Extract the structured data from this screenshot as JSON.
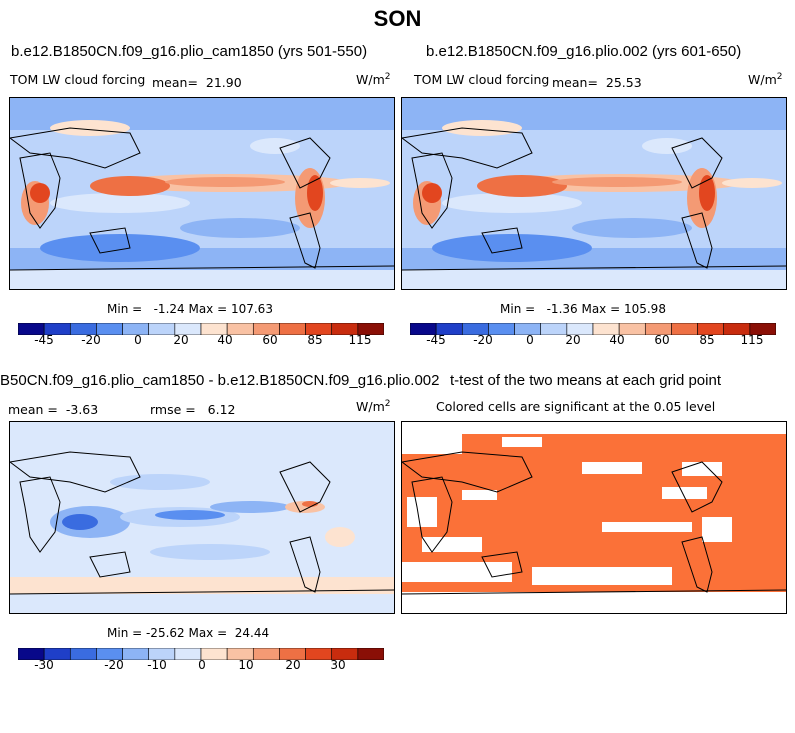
{
  "page_title": "SON",
  "panels": [
    {
      "case_title": "b.e12.B1850CN.f09_g16.plio_cam1850 (yrs 501-550)",
      "variable": "TOM LW cloud forcing",
      "mean_label": "mean=",
      "mean_value": "21.90",
      "units": "W/m",
      "units_exp": "2",
      "minmax_text": "Min =   -1.24 Max = 107.63",
      "colorbar_ticks": [
        "-45",
        "-20",
        "0",
        "20",
        "40",
        "60",
        "85",
        "115"
      ]
    },
    {
      "case_title": "b.e12.B1850CN.f09_g16.plio.002 (yrs 601-650)",
      "variable": "TOM LW cloud forcing",
      "mean_label": "mean=",
      "mean_value": "25.53",
      "units": "W/m",
      "units_exp": "2",
      "minmax_text": "Min =   -1.36 Max = 105.98",
      "colorbar_ticks": [
        "-45",
        "-20",
        "0",
        "20",
        "40",
        "60",
        "85",
        "115"
      ]
    },
    {
      "case_title": "B50CN.f09_g16.plio_cam1850 - b.e12.B1850CN.f09_g16.plio.002",
      "mean_label": "mean =",
      "mean_value": "-3.63",
      "rmse_label": "rmse =",
      "rmse_value": "6.12",
      "units": "W/m",
      "units_exp": "2",
      "minmax_text": "Min = -25.62 Max =  24.44",
      "colorbar_ticks": [
        "-30",
        "-20",
        "-10",
        "0",
        "10",
        "20",
        "30"
      ]
    },
    {
      "case_title": "t-test of the two means at each grid point",
      "subtitle": "Colored cells are significant at the 0.05 level"
    }
  ],
  "colors": {
    "abs_scale": [
      "#08088a",
      "#1f3fc8",
      "#3a6ce0",
      "#5a8ff0",
      "#8db4f5",
      "#bcd4fa",
      "#dbe8fc",
      "#fde3d0",
      "#f9c2a4",
      "#f49a74",
      "#ee7044",
      "#e2461f",
      "#c82c0e",
      "#8a0f06"
    ],
    "diff_scale": [
      "#08088a",
      "#1f3fc8",
      "#3a6ce0",
      "#5a8ff0",
      "#8db4f5",
      "#bcd4fa",
      "#dbe8fc",
      "#fde3d0",
      "#f9c2a4",
      "#f49a74",
      "#ee7044",
      "#e2461f",
      "#c82c0e",
      "#8a0f06"
    ],
    "significant": "#fb7138",
    "background_blue": "#bcd4fa"
  },
  "chart_data": [
    {
      "type": "heatmap",
      "title": "b.e12.B1850CN.f09_g16.plio_cam1850 (yrs 501-550)",
      "variable": "TOM LW cloud forcing",
      "units": "W/m2",
      "mean": 21.9,
      "min": -1.24,
      "max": 107.63,
      "colorbar_ticks": [
        -45,
        -20,
        0,
        20,
        40,
        60,
        85,
        115
      ]
    },
    {
      "type": "heatmap",
      "title": "b.e12.B1850CN.f09_g16.plio.002 (yrs 601-650)",
      "variable": "TOM LW cloud forcing",
      "units": "W/m2",
      "mean": 25.53,
      "min": -1.36,
      "max": 105.98,
      "colorbar_ticks": [
        -45,
        -20,
        0,
        20,
        40,
        60,
        85,
        115
      ]
    },
    {
      "type": "heatmap",
      "title": "B50CN.f09_g16.plio_cam1850 - b.e12.B1850CN.f09_g16.plio.002",
      "units": "W/m2",
      "mean": -3.63,
      "rmse": 6.12,
      "min": -25.62,
      "max": 24.44,
      "colorbar_ticks": [
        -30,
        -20,
        -10,
        0,
        10,
        20,
        30
      ]
    },
    {
      "type": "heatmap",
      "title": "t-test of the two means at each grid point",
      "subtitle": "Colored cells are significant at the 0.05 level"
    }
  ]
}
